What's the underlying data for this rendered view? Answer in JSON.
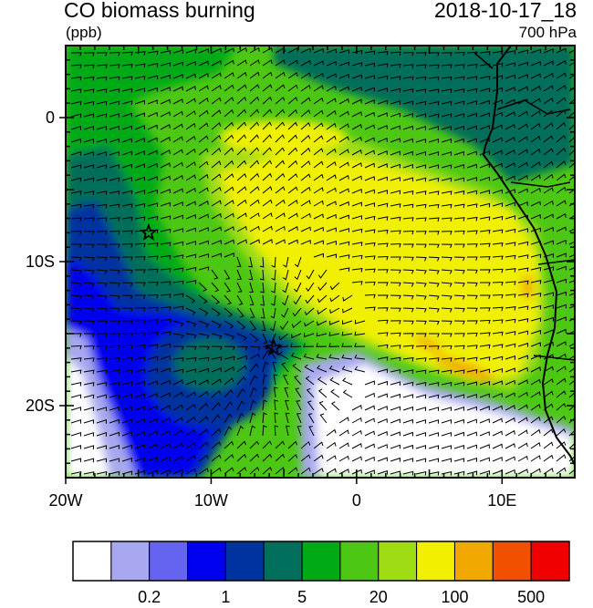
{
  "header": {
    "title": "CO biomass burning",
    "units": "(ppb)",
    "datetime": "2018-10-17_18",
    "level": "700 hPa"
  },
  "map": {
    "lon_range": [
      -20,
      15
    ],
    "lat_range": [
      -25,
      5
    ],
    "lon_ticks": [
      {
        "value": -20,
        "label": "20W"
      },
      {
        "value": -10,
        "label": "10W"
      },
      {
        "value": 0,
        "label": "0"
      },
      {
        "value": 10,
        "label": "10E"
      }
    ],
    "lat_ticks": [
      {
        "value": 0,
        "label": "0"
      },
      {
        "value": -10,
        "label": "10S"
      },
      {
        "value": -20,
        "label": "20S"
      }
    ],
    "markers": [
      {
        "name": "star-marker-1",
        "lon": -14.3,
        "lat": -8.0
      },
      {
        "name": "star-marker-2",
        "lon": -5.7,
        "lat": -16.0
      }
    ],
    "field": "CO concentration shaded, wind barbs overlaid"
  },
  "colorbar": {
    "colors": [
      "#ffffff",
      "#a8a8f0",
      "#6464f0",
      "#0000f0",
      "#0032a0",
      "#006e5a",
      "#00aa14",
      "#4cc814",
      "#a0dc14",
      "#f0f000",
      "#f0a800",
      "#f05000",
      "#f00000"
    ],
    "labels": [
      {
        "text": "0.2",
        "boundary": 2
      },
      {
        "text": "1",
        "boundary": 4
      },
      {
        "text": "5",
        "boundary": 6
      },
      {
        "text": "20",
        "boundary": 8
      },
      {
        "text": "100",
        "boundary": 10
      },
      {
        "text": "500",
        "boundary": 12
      }
    ]
  }
}
